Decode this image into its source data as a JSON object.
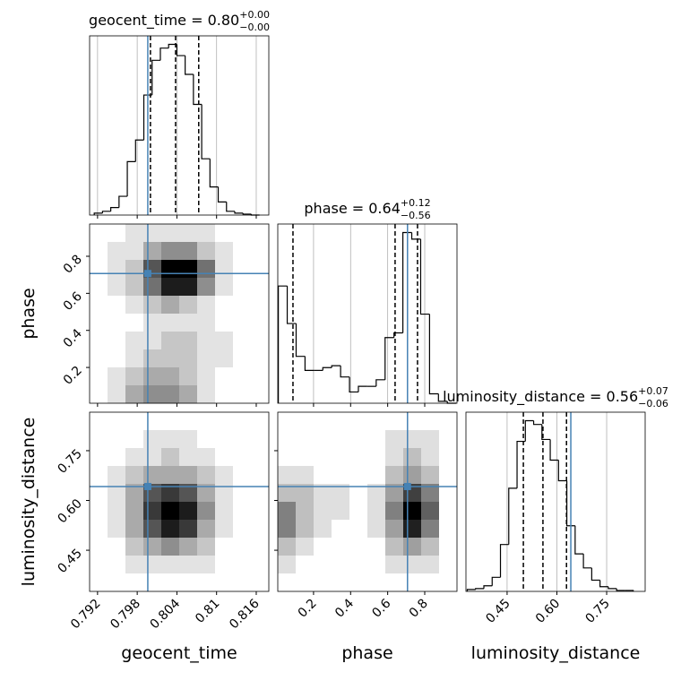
{
  "chart_data": {
    "type": "corner",
    "parameters": [
      "geocent_time",
      "phase",
      "luminosity_distance"
    ],
    "titles": [
      {
        "text": "geocent_time = 0.80",
        "plus": "+0.00",
        "minus": "−0.00"
      },
      {
        "text": "phase = 0.64",
        "plus": "+0.12",
        "minus": "−0.56"
      },
      {
        "text": "luminosity_distance = 0.56",
        "plus": "+0.07",
        "minus": "−0.06"
      }
    ],
    "truth_color": "#4682b4",
    "truths": [
      0.7996,
      0.707,
      0.642
    ],
    "quantiles": [
      [
        0.8,
        0.8038,
        0.8073
      ],
      [
        0.089,
        0.64,
        0.761
      ],
      [
        0.499,
        0.558,
        0.629
      ]
    ],
    "lims": [
      [
        0.7908,
        0.8179
      ],
      [
        0.007,
        0.974
      ],
      [
        0.326,
        0.866
      ]
    ],
    "ticks": [
      [
        0.792,
        0.798,
        0.804,
        0.81,
        0.816
      ],
      [
        0.2,
        0.4,
        0.6,
        0.8
      ],
      [
        0.45,
        {
          "value": 0.6,
          "label": "0.60"
        },
        0.75
      ]
    ],
    "grid": true,
    "hist": [
      {
        "bins": [
          0.7915,
          0.79275,
          0.794,
          0.79525,
          0.7965,
          0.79775,
          0.799,
          0.80025,
          0.8015,
          0.80275,
          0.804,
          0.80525,
          0.8065,
          0.80775,
          0.809,
          0.81025,
          0.8115,
          0.81275,
          0.814,
          0.81525,
          0.8165
        ],
        "counts": [
          2,
          4,
          8,
          20,
          57,
          80,
          128,
          165,
          178,
          182,
          170,
          150,
          118,
          60,
          30,
          14,
          4,
          2,
          1,
          0
        ]
      },
      {
        "bins": [
          0.01,
          0.058,
          0.106,
          0.154,
          0.202,
          0.25,
          0.298,
          0.346,
          0.394,
          0.442,
          0.49,
          0.538,
          0.586,
          0.634,
          0.682,
          0.73,
          0.778,
          0.826,
          0.874,
          0.922,
          0.97
        ],
        "counts": [
          125,
          85,
          50,
          35,
          35,
          38,
          40,
          28,
          12,
          18,
          18,
          25,
          70,
          75,
          182,
          175,
          95,
          10,
          2,
          0
        ]
      },
      {
        "bins": [
          0.33,
          0.355,
          0.38,
          0.405,
          0.43,
          0.455,
          0.48,
          0.505,
          0.53,
          0.555,
          0.58,
          0.605,
          0.63,
          0.655,
          0.68,
          0.705,
          0.73,
          0.755,
          0.78,
          0.805,
          0.83
        ],
        "counts": [
          2,
          3,
          6,
          15,
          50,
          110,
          160,
          182,
          178,
          162,
          140,
          118,
          70,
          40,
          25,
          12,
          5,
          3,
          1,
          1
        ]
      }
    ],
    "density": [
      {
        "x": 0,
        "y": 1,
        "grid": [
          [
            0,
            0,
            1,
            1,
            1,
            1,
            1,
            0,
            0,
            0
          ],
          [
            0,
            1,
            1,
            3,
            4,
            4,
            2,
            1,
            0,
            0
          ],
          [
            0,
            1,
            2,
            6,
            9,
            9,
            5,
            1,
            0,
            0
          ],
          [
            0,
            1,
            2,
            5,
            8,
            8,
            4,
            1,
            0,
            0
          ],
          [
            0,
            0,
            1,
            2,
            3,
            2,
            1,
            0,
            0,
            0
          ],
          [
            0,
            0,
            0,
            1,
            1,
            1,
            1,
            0,
            0,
            0
          ],
          [
            0,
            0,
            1,
            1,
            2,
            2,
            1,
            1,
            0,
            0
          ],
          [
            0,
            0,
            1,
            2,
            2,
            2,
            1,
            1,
            0,
            0
          ],
          [
            0,
            1,
            2,
            3,
            3,
            2,
            1,
            0,
            0,
            0
          ],
          [
            0,
            1,
            3,
            4,
            4,
            3,
            1,
            0,
            0,
            0
          ]
        ]
      },
      {
        "x": 0,
        "y": 2,
        "grid": [
          [
            0,
            0,
            0,
            0,
            0,
            0,
            0,
            0,
            0,
            0
          ],
          [
            0,
            0,
            0,
            1,
            1,
            1,
            0,
            0,
            0,
            0
          ],
          [
            0,
            0,
            1,
            1,
            2,
            1,
            1,
            0,
            0,
            0
          ],
          [
            0,
            1,
            2,
            3,
            3,
            3,
            2,
            1,
            0,
            0
          ],
          [
            0,
            1,
            3,
            6,
            7,
            6,
            3,
            1,
            0,
            0
          ],
          [
            0,
            1,
            3,
            7,
            9,
            8,
            4,
            1,
            0,
            0
          ],
          [
            0,
            1,
            3,
            6,
            8,
            7,
            3,
            1,
            0,
            0
          ],
          [
            0,
            0,
            2,
            3,
            4,
            3,
            2,
            0,
            0,
            0
          ],
          [
            0,
            0,
            1,
            1,
            1,
            1,
            1,
            0,
            0,
            0
          ],
          [
            0,
            0,
            0,
            0,
            0,
            0,
            0,
            0,
            0,
            0
          ]
        ]
      },
      {
        "x": 1,
        "y": 2,
        "grid": [
          [
            0,
            0,
            0,
            0,
            0,
            0,
            0,
            0,
            0,
            0
          ],
          [
            0,
            0,
            0,
            0,
            0,
            0,
            1,
            1,
            1,
            0
          ],
          [
            0,
            0,
            0,
            0,
            0,
            0,
            1,
            2,
            1,
            0
          ],
          [
            1,
            1,
            0,
            0,
            0,
            0,
            2,
            3,
            2,
            0
          ],
          [
            2,
            2,
            1,
            1,
            0,
            1,
            3,
            6,
            4,
            0
          ],
          [
            4,
            2,
            1,
            1,
            0,
            1,
            4,
            8,
            5,
            0
          ],
          [
            4,
            2,
            1,
            0,
            0,
            1,
            3,
            7,
            4,
            0
          ],
          [
            2,
            1,
            0,
            0,
            0,
            0,
            2,
            3,
            2,
            0
          ],
          [
            1,
            0,
            0,
            0,
            0,
            0,
            1,
            1,
            1,
            0
          ],
          [
            0,
            0,
            0,
            0,
            0,
            0,
            0,
            0,
            0,
            0
          ]
        ]
      }
    ]
  }
}
